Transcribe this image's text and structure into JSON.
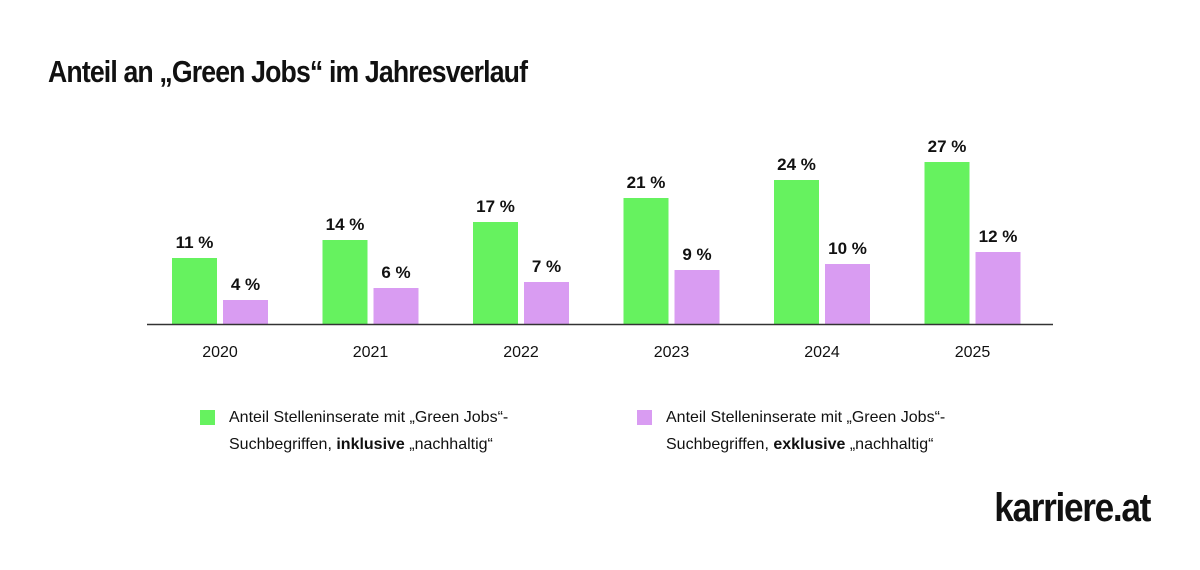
{
  "title": "Anteil an „Green Jobs“ im Jahresverlauf",
  "logo": "karriere.at",
  "colors": {
    "green": "#66f25f",
    "purple": "#d99cf2",
    "axis": "#333333"
  },
  "legend": [
    {
      "pre": "Anteil Stelleninserate mit „Green Jobs“-Suchbegriffen, ",
      "bold": "inklusive",
      "post": " „nachhaltig“",
      "color": "#66f25f"
    },
    {
      "pre": "Anteil Stelleninserate mit „Green Jobs“-Suchbegriffen, ",
      "bold": "exklusive",
      "post": " „nachhaltig“",
      "color": "#d99cf2"
    }
  ],
  "chart_data": {
    "type": "bar",
    "categories": [
      "2020",
      "2021",
      "2022",
      "2023",
      "2024",
      "2025"
    ],
    "series": [
      {
        "name": "Anteil Stelleninserate mit „Green Jobs“-Suchbegriffen, inklusive „nachhaltig“",
        "values": [
          11,
          14,
          17,
          21,
          24,
          27
        ],
        "labels": [
          "11 %",
          "14 %",
          "17 %",
          "21 %",
          "24 %",
          "27 %"
        ]
      },
      {
        "name": "Anteil Stelleninserate mit „Green Jobs“-Suchbegriffen, exklusive „nachhaltig“",
        "values": [
          4,
          6,
          7,
          9,
          10,
          12
        ],
        "labels": [
          "4 %",
          "6 %",
          "7 %",
          "9 %",
          "10 %",
          "12 %"
        ]
      }
    ],
    "unit": "%",
    "ylim": [
      0,
      27
    ],
    "grid": false,
    "legend_position": "bottom"
  }
}
